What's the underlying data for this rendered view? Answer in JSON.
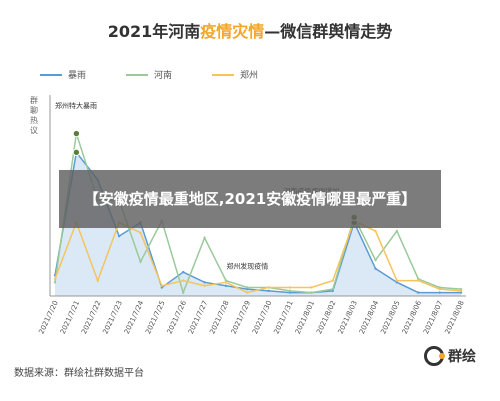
{
  "title": {
    "prefix": "2021年河南",
    "highlight": "疫情灾情",
    "suffix": "—微信群舆情走势"
  },
  "overlay_text": "【安徽疫情最重地区,2021安徽疫情哪里最严重】",
  "source": "数据来源：群绘社群数据平台",
  "logo_text": "群绘",
  "logo_icon": "ring-logo-icon",
  "chart_data": {
    "type": "line",
    "ylabel": "群聊热议",
    "categories": [
      "2021/7/20",
      "2021/7/21",
      "2021/7/22",
      "2021/7/23",
      "2021/7/24",
      "2021/7/25",
      "2021/7/26",
      "2021/7/27",
      "2021/7/28",
      "2021/7/29",
      "2021/7/30",
      "2021/7/31",
      "2021/8/01",
      "2021/8/02",
      "2021/8/03",
      "2021/8/04",
      "2021/8/05",
      "2021/8/06",
      "2021/8/07",
      "2021/8/08"
    ],
    "ylim": [
      0,
      100
    ],
    "series": [
      {
        "name": "暴雨",
        "color": "#5b9bd5",
        "area": true,
        "values": [
          12,
          84,
          68,
          35,
          43,
          5,
          14,
          8,
          6,
          4,
          3,
          2,
          2,
          3,
          43,
          16,
          8,
          2,
          2,
          2
        ]
      },
      {
        "name": "河南",
        "color": "#9bc999",
        "area": false,
        "values": [
          8,
          95,
          56,
          56,
          20,
          44,
          2,
          34,
          9,
          5,
          5,
          3,
          2,
          4,
          46,
          21,
          38,
          10,
          5,
          4
        ]
      },
      {
        "name": "郑州",
        "color": "#f5c45c",
        "area": false,
        "values": [
          10,
          43,
          9,
          43,
          37,
          6,
          9,
          6,
          8,
          2,
          5,
          5,
          5,
          9,
          44,
          38,
          9,
          9,
          4,
          3
        ]
      }
    ],
    "markers": [
      {
        "series": 1,
        "index": 1
      },
      {
        "series": 0,
        "index": 1
      },
      {
        "series": 0,
        "index": 14
      },
      {
        "series": 1,
        "index": 14
      }
    ],
    "annotations": [
      {
        "text": "郑州特大暴雨",
        "index": 1,
        "value": 110
      },
      {
        "text": "河南疫情病例增加",
        "index": 12,
        "value": 60
      },
      {
        "text": "郑州发现疫情",
        "index": 9,
        "value": 16
      }
    ]
  }
}
